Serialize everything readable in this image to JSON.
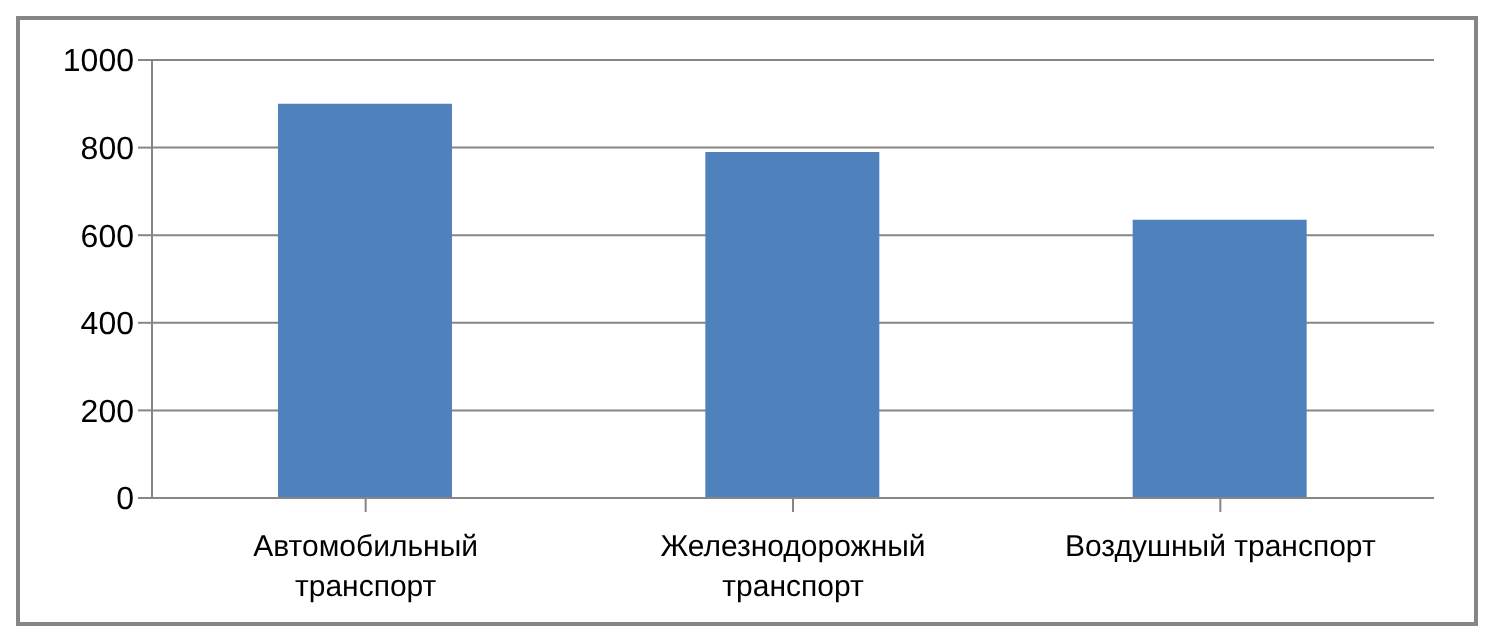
{
  "chart_data": {
    "type": "bar",
    "categories": [
      "Автомобильный транспорт",
      "Железнодорожный транспорт",
      "Воздушный транспорт"
    ],
    "values": [
      900,
      790,
      635
    ],
    "color": "#4f81bd",
    "ylim": [
      0,
      1000
    ],
    "yticks": [
      0,
      200,
      400,
      600,
      800,
      1000
    ],
    "grid": "y",
    "legend": false
  }
}
